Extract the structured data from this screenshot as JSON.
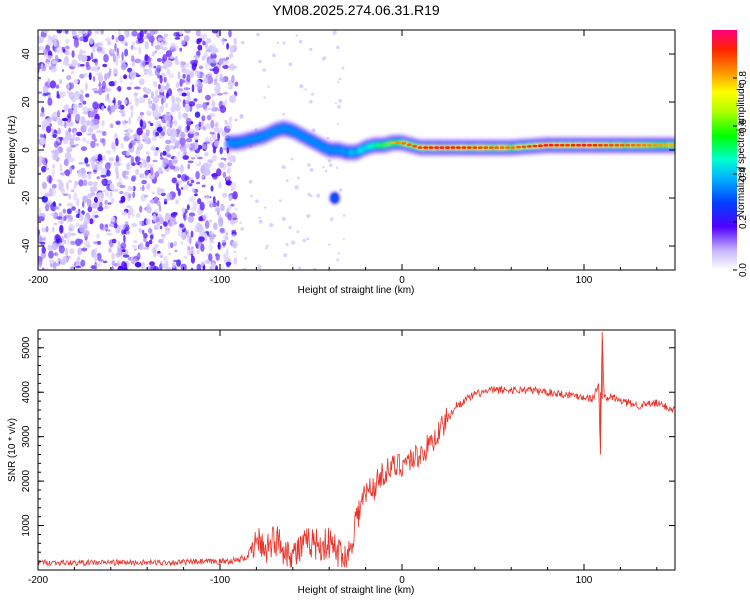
{
  "title": "YM08.2025.274.06.31.R19",
  "colors": {
    "signal": "#e8332a",
    "low_power": "#7a00ee",
    "frame": "#000000"
  },
  "chart_data": [
    {
      "type": "heatmap",
      "name": "spectrogram",
      "xlabel": "Height of straight line (km)",
      "ylabel": "Frequency (Hz)",
      "xlim": [
        -200,
        150
      ],
      "ylim": [
        -50,
        50
      ],
      "xticks": [
        -200,
        -100,
        0,
        100
      ],
      "yticks": [
        -40,
        -20,
        0,
        20,
        40
      ],
      "noise_region_km": [
        -200,
        -91
      ],
      "signal_trace": {
        "x_km": [
          -95,
          -90,
          -85,
          -80,
          -75,
          -70,
          -65,
          -60,
          -55,
          -50,
          -45,
          -40,
          -35,
          -30,
          -25,
          -20,
          -15,
          -10,
          -5,
          0,
          10,
          20,
          40,
          60,
          80,
          90,
          100,
          110,
          130,
          150
        ],
        "freq_hz": [
          3,
          3,
          4,
          5,
          6,
          8,
          9,
          8,
          6,
          4,
          2,
          0,
          0,
          -1,
          -1,
          1,
          2,
          2,
          3,
          3,
          1,
          1,
          1,
          1,
          2,
          2,
          2,
          2,
          2,
          2
        ],
        "amplitude": [
          0.3,
          0.35,
          0.4,
          0.45,
          0.35,
          0.4,
          0.4,
          0.45,
          0.5,
          0.45,
          0.4,
          0.45,
          0.5,
          0.55,
          0.6,
          0.65,
          0.7,
          0.75,
          0.8,
          0.85,
          0.9,
          0.95,
          0.9,
          0.85,
          0.95,
          0.9,
          0.95,
          0.9,
          0.85,
          0.8
        ]
      },
      "colorbar": {
        "label": "Normalized spectral amplitude",
        "range": [
          0,
          1
        ],
        "ticks": [
          "0.0",
          "0.2",
          "0.4",
          "0.6",
          "0.8"
        ],
        "tick_values": [
          0,
          0.2,
          0.4,
          0.6,
          0.8
        ]
      }
    },
    {
      "type": "line",
      "name": "snr",
      "xlabel": "Height of straight line (km)",
      "ylabel": "SNR (10 * v/v)",
      "xlim": [
        -200,
        150
      ],
      "ylim": [
        0,
        5400
      ],
      "xticks": [
        -200,
        -100,
        0,
        100
      ],
      "yticks": [
        1000,
        2000,
        3000,
        4000,
        5000
      ],
      "series": [
        {
          "name": "SNR",
          "x": [
            -200,
            -180,
            -160,
            -140,
            -120,
            -100,
            -90,
            -85,
            -80,
            -75,
            -70,
            -65,
            -60,
            -55,
            -50,
            -45,
            -40,
            -35,
            -30,
            -25,
            -20,
            -15,
            -10,
            -5,
            0,
            5,
            10,
            15,
            20,
            25,
            30,
            40,
            50,
            60,
            70,
            80,
            90,
            100,
            105,
            108,
            109,
            110,
            111,
            115,
            120,
            130,
            140,
            150
          ],
          "y": [
            170,
            160,
            170,
            165,
            175,
            190,
            220,
            300,
            650,
            500,
            700,
            500,
            350,
            500,
            650,
            550,
            600,
            400,
            250,
            1200,
            1700,
            1900,
            2200,
            2300,
            2400,
            2500,
            2600,
            2800,
            3100,
            3400,
            3700,
            3950,
            4050,
            4050,
            4050,
            4000,
            3950,
            3900,
            3850,
            4200,
            2600,
            5350,
            3850,
            3900,
            3800,
            3700,
            3750,
            3600
          ]
        }
      ],
      "peak_annotation": {
        "x": 110,
        "y": 5350
      }
    }
  ]
}
